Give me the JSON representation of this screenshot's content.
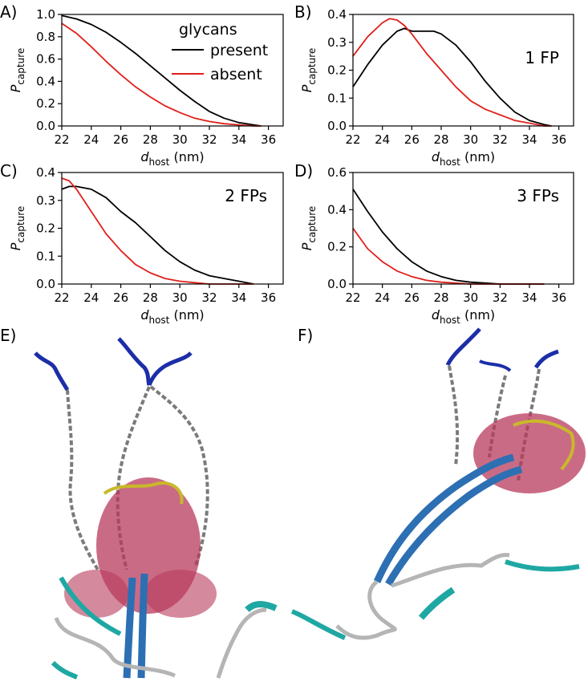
{
  "legend": {
    "title": "glycans",
    "entries": [
      {
        "label": "present",
        "color": "#000000"
      },
      {
        "label": "absent",
        "color": "#e0201b"
      }
    ]
  },
  "panel_labels": [
    "A)",
    "B)",
    "C)",
    "D)",
    "E)",
    "F)"
  ],
  "axis_text": {
    "x_main": "d",
    "x_sub": "host",
    "x_unit": " (nm)",
    "y_main": "P",
    "y_sub": "capture"
  },
  "chart_data": [
    {
      "type": "line",
      "panel": "A)",
      "annotation": "",
      "xlim": [
        22,
        37
      ],
      "ylim": [
        0,
        1.0
      ],
      "xticks": [
        22,
        24,
        26,
        28,
        30,
        32,
        34,
        36
      ],
      "yticks": [
        "0.0",
        "0.2",
        "0.4",
        "0.6",
        "0.8",
        "1.0"
      ],
      "series": [
        {
          "name": "present",
          "color": "#000000",
          "x": [
            22,
            23,
            24,
            25,
            26,
            27,
            28,
            29,
            30,
            31,
            32,
            33,
            34,
            35,
            35.5
          ],
          "y": [
            0.99,
            0.96,
            0.91,
            0.84,
            0.75,
            0.65,
            0.54,
            0.43,
            0.32,
            0.22,
            0.13,
            0.07,
            0.03,
            0.01,
            0.0
          ]
        },
        {
          "name": "absent",
          "color": "#e0201b",
          "x": [
            22,
            23,
            24,
            25,
            26,
            27,
            28,
            29,
            30,
            31,
            32,
            33,
            34,
            35,
            35.5
          ],
          "y": [
            0.92,
            0.83,
            0.71,
            0.58,
            0.46,
            0.35,
            0.26,
            0.18,
            0.12,
            0.07,
            0.04,
            0.02,
            0.01,
            0.0,
            0.0
          ]
        }
      ]
    },
    {
      "type": "line",
      "panel": "B)",
      "annotation": "1 FP",
      "xlim": [
        22,
        37
      ],
      "ylim": [
        0,
        0.4
      ],
      "xticks": [
        22,
        24,
        26,
        28,
        30,
        32,
        34,
        36
      ],
      "yticks": [
        "0.0",
        "0.1",
        "0.2",
        "0.3",
        "0.4"
      ],
      "series": [
        {
          "name": "present",
          "color": "#000000",
          "x": [
            22,
            23,
            24,
            25,
            25.5,
            26,
            27,
            27.5,
            28,
            29,
            30,
            31,
            32,
            33,
            34,
            35,
            35.5
          ],
          "y": [
            0.14,
            0.22,
            0.29,
            0.34,
            0.35,
            0.34,
            0.34,
            0.34,
            0.33,
            0.29,
            0.23,
            0.16,
            0.1,
            0.05,
            0.02,
            0.005,
            0.0
          ]
        },
        {
          "name": "absent",
          "color": "#e0201b",
          "x": [
            22,
            23,
            24,
            24.5,
            25,
            25.5,
            26,
            27,
            28,
            29,
            30,
            31,
            32,
            33,
            34,
            35,
            35.5
          ],
          "y": [
            0.25,
            0.32,
            0.37,
            0.385,
            0.38,
            0.36,
            0.33,
            0.26,
            0.2,
            0.14,
            0.09,
            0.06,
            0.04,
            0.02,
            0.01,
            0.0,
            0.0
          ]
        }
      ]
    },
    {
      "type": "line",
      "panel": "C)",
      "annotation": "2 FPs",
      "xlim": [
        22,
        37
      ],
      "ylim": [
        0,
        0.4
      ],
      "xticks": [
        22,
        24,
        26,
        28,
        30,
        32,
        34,
        36
      ],
      "yticks": [
        "0.0",
        "0.1",
        "0.2",
        "0.3",
        "0.4"
      ],
      "series": [
        {
          "name": "present",
          "color": "#000000",
          "x": [
            22,
            22.5,
            23,
            24,
            25,
            26,
            27,
            28,
            29,
            30,
            31,
            32,
            33,
            34,
            35
          ],
          "y": [
            0.34,
            0.35,
            0.35,
            0.34,
            0.31,
            0.26,
            0.22,
            0.17,
            0.12,
            0.08,
            0.05,
            0.03,
            0.02,
            0.01,
            0.0
          ]
        },
        {
          "name": "absent",
          "color": "#e0201b",
          "x": [
            22,
            22.5,
            23,
            24,
            25,
            26,
            27,
            28,
            29,
            30,
            31,
            32,
            33,
            34,
            35
          ],
          "y": [
            0.38,
            0.37,
            0.34,
            0.26,
            0.18,
            0.12,
            0.07,
            0.04,
            0.02,
            0.01,
            0.005,
            0.0,
            0.0,
            0.0,
            0.0
          ]
        }
      ]
    },
    {
      "type": "line",
      "panel": "D)",
      "annotation": "3 FPs",
      "xlim": [
        22,
        37
      ],
      "ylim": [
        0,
        0.6
      ],
      "xticks": [
        22,
        24,
        26,
        28,
        30,
        32,
        34,
        36
      ],
      "yticks": [
        "0.0",
        "0.2",
        "0.4",
        "0.6"
      ],
      "series": [
        {
          "name": "present",
          "color": "#000000",
          "x": [
            22,
            23,
            24,
            25,
            26,
            27,
            28,
            29,
            30,
            31,
            32,
            33,
            34,
            35
          ],
          "y": [
            0.51,
            0.39,
            0.28,
            0.19,
            0.12,
            0.07,
            0.04,
            0.02,
            0.01,
            0.005,
            0.0,
            0.0,
            0.0,
            0.0
          ]
        },
        {
          "name": "absent",
          "color": "#e0201b",
          "x": [
            22,
            23,
            24,
            25,
            26,
            27,
            28,
            29,
            30,
            31,
            32,
            33,
            34,
            35
          ],
          "y": [
            0.3,
            0.19,
            0.12,
            0.07,
            0.04,
            0.02,
            0.01,
            0.005,
            0.0,
            0.0,
            0.0,
            0.0,
            0.0,
            0.0
          ]
        }
      ]
    }
  ],
  "render_colors": {
    "glycan_red": "#b83a5c",
    "glycan_yellow": "#c9b92a",
    "helix_blue": "#2d6fb3",
    "tip_navy": "#1c2ea8",
    "linker_gray": "#7a7a7a",
    "ribbon_light": "#b5b5b5",
    "anchor_teal": "#1fa8a3"
  }
}
